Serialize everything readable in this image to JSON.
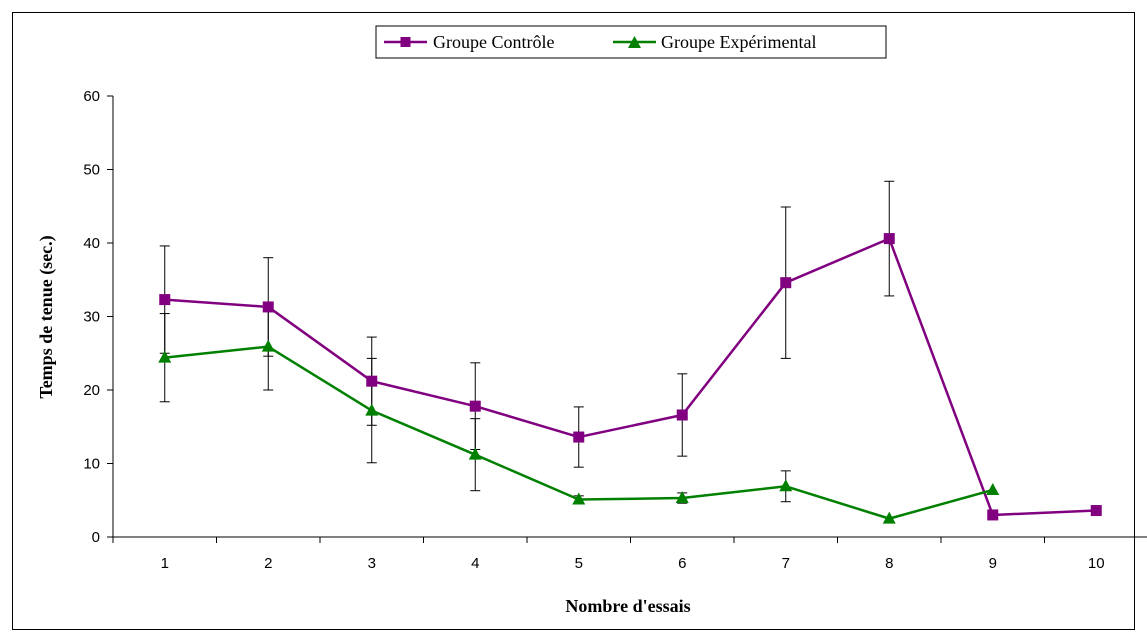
{
  "chart_data": {
    "type": "line",
    "title": "",
    "xlabel": "Nombre d'essais",
    "ylabel": "Temps de tenue (sec.)",
    "categories": [
      "1",
      "2",
      "3",
      "4",
      "5",
      "6",
      "7",
      "8",
      "9",
      "10"
    ],
    "ylim": [
      0,
      60
    ],
    "yticks": [
      0,
      10,
      20,
      30,
      40,
      50,
      60
    ],
    "grid": false,
    "legend_position": "top",
    "series": [
      {
        "name": "Groupe Contrôle",
        "color": "#800080",
        "marker": "square",
        "values": [
          32.3,
          31.3,
          21.2,
          17.8,
          13.6,
          16.6,
          34.6,
          40.6,
          3.0,
          3.6
        ],
        "error": [
          7.3,
          6.7,
          6.0,
          5.9,
          4.1,
          5.6,
          10.3,
          7.8,
          null,
          null
        ]
      },
      {
        "name": "Groupe Expérimental",
        "color": "#008000",
        "marker": "triangle",
        "values": [
          24.4,
          25.9,
          17.2,
          11.2,
          5.1,
          5.3,
          6.9,
          2.5,
          6.4,
          null
        ],
        "error": [
          6.0,
          5.9,
          7.1,
          4.9,
          0.5,
          0.7,
          2.1,
          null,
          null,
          null
        ]
      }
    ]
  }
}
